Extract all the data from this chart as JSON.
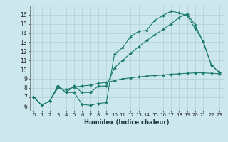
{
  "xlabel": "Humidex (Indice chaleur)",
  "xlim": [
    -0.5,
    23.5
  ],
  "ylim": [
    5.5,
    17.0
  ],
  "xticks": [
    0,
    1,
    2,
    3,
    4,
    5,
    6,
    7,
    8,
    9,
    10,
    11,
    12,
    13,
    14,
    15,
    16,
    17,
    18,
    19,
    20,
    21,
    22,
    23
  ],
  "yticks": [
    6,
    7,
    8,
    9,
    10,
    11,
    12,
    13,
    14,
    15,
    16
  ],
  "bg_color": "#cce8ee",
  "grid_color": "#b0cfd8",
  "line_color": "#1a7a6e",
  "curve1_x": [
    0,
    1,
    2,
    3,
    4,
    5,
    6,
    7,
    8,
    9,
    10,
    11,
    12,
    13,
    14,
    15,
    16,
    17,
    18,
    19,
    20,
    21,
    22,
    23
  ],
  "curve1_y": [
    7.0,
    6.1,
    6.6,
    8.2,
    7.5,
    7.5,
    6.2,
    6.1,
    6.3,
    6.4,
    11.7,
    12.4,
    13.6,
    14.2,
    14.3,
    15.4,
    15.9,
    16.4,
    16.2,
    15.9,
    14.5,
    13.1,
    10.5,
    9.7
  ],
  "curve2_x": [
    0,
    1,
    2,
    3,
    4,
    5,
    6,
    7,
    8,
    9,
    10,
    11,
    12,
    13,
    14,
    15,
    16,
    17,
    18,
    19,
    20,
    21,
    22,
    23
  ],
  "curve2_y": [
    7.0,
    6.1,
    6.6,
    8.2,
    7.5,
    8.2,
    7.5,
    7.5,
    8.2,
    8.2,
    10.2,
    11.0,
    11.8,
    12.5,
    13.2,
    13.8,
    14.4,
    15.0,
    15.7,
    16.1,
    14.9,
    13.0,
    10.5,
    9.7
  ],
  "curve3_x": [
    0,
    1,
    2,
    3,
    4,
    5,
    6,
    7,
    8,
    9,
    10,
    11,
    12,
    13,
    14,
    15,
    16,
    17,
    18,
    19,
    20,
    21,
    22,
    23
  ],
  "curve3_y": [
    7.0,
    6.1,
    6.6,
    8.0,
    7.8,
    8.1,
    8.2,
    8.3,
    8.5,
    8.6,
    8.8,
    9.0,
    9.1,
    9.2,
    9.3,
    9.35,
    9.4,
    9.5,
    9.55,
    9.6,
    9.65,
    9.65,
    9.6,
    9.55
  ],
  "xticklabel_fontsize": 5.0,
  "yticklabel_fontsize": 5.5,
  "xlabel_fontsize": 6.0
}
